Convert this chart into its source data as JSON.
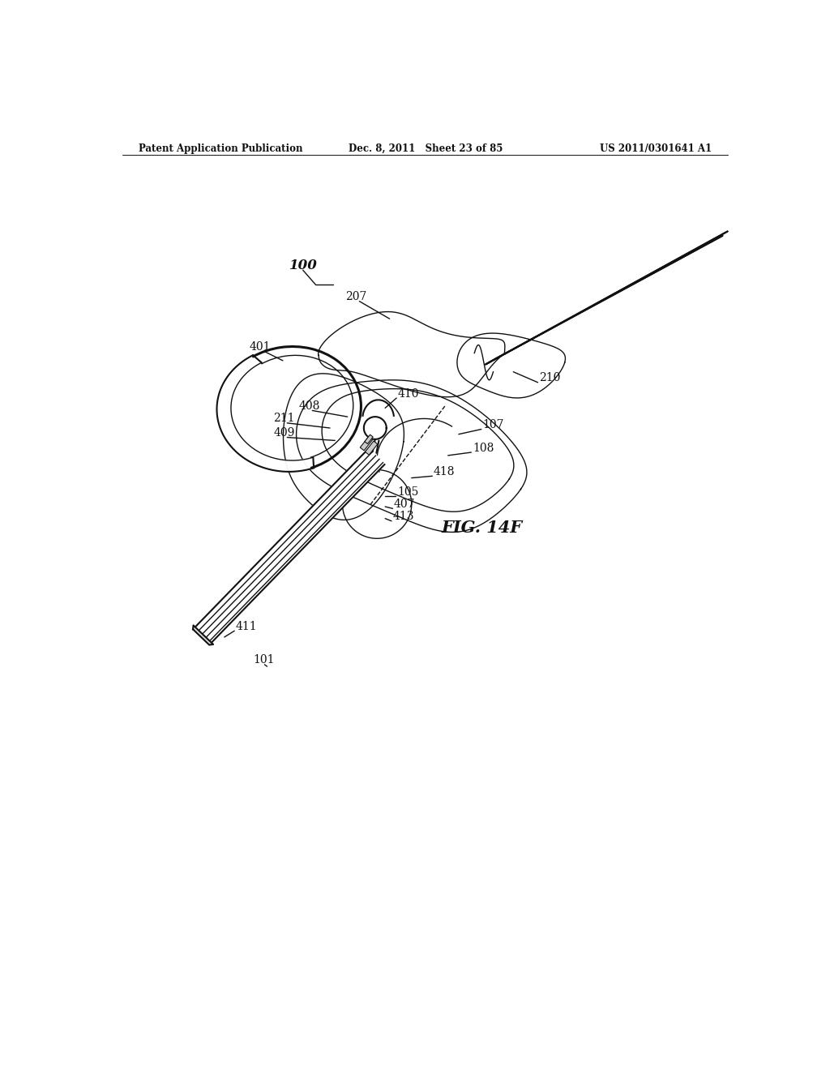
{
  "bg_color": "#ffffff",
  "lc": "#111111",
  "header_left": "Patent Application Publication",
  "header_mid": "Dec. 8, 2011   Sheet 23 of 85",
  "header_right": "US 2011/0301641 A1",
  "fig_label": "FIG. 14F",
  "lw_thin": 1.0,
  "lw_med": 1.5,
  "lw_thick": 2.2,
  "lw_rail": 2.5
}
